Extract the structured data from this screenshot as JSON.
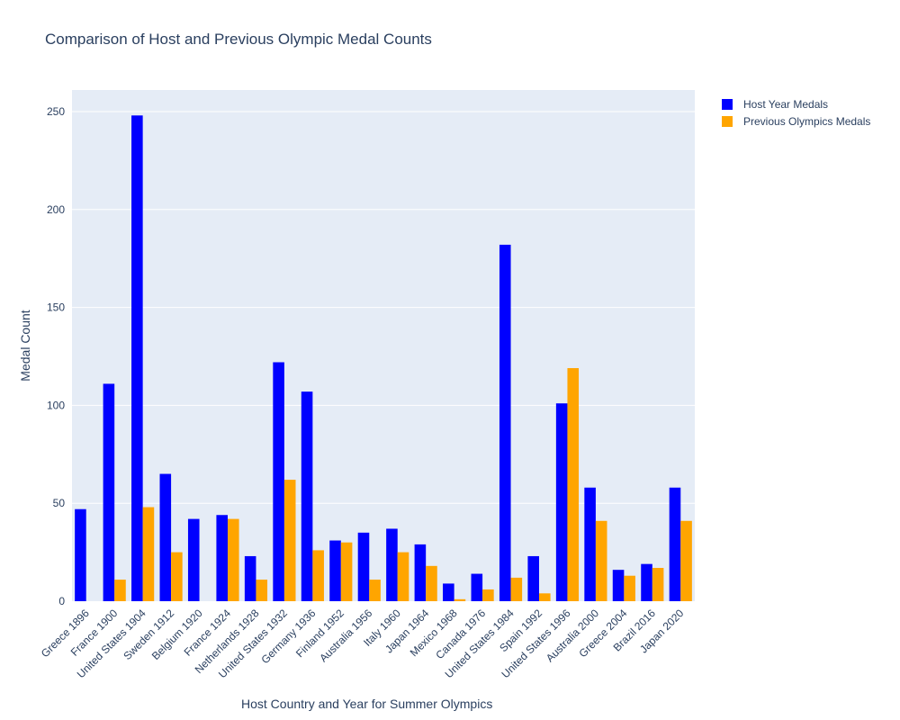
{
  "chart_data": {
    "type": "bar",
    "title": "Comparison of Host and Previous Olympic Medal Counts",
    "xlabel": "Host Country and Year for Summer Olympics",
    "ylabel": "Medal Count",
    "ylim": [
      0,
      261
    ],
    "yticks": [
      0,
      50,
      100,
      150,
      200,
      250
    ],
    "grid": true,
    "legend_position": "top-right",
    "categories": [
      "Greece 1896",
      "France 1900",
      "United States 1904",
      "Sweden 1912",
      "Belgium 1920",
      "France 1924",
      "Netherlands 1928",
      "United States 1932",
      "Germany 1936",
      "Finland 1952",
      "Australia 1956",
      "Italy 1960",
      "Japan 1964",
      "Mexico 1968",
      "Canada 1976",
      "United States 1984",
      "Spain 1992",
      "United States 1996",
      "Australia 2000",
      "Greece 2004",
      "Brazil 2016",
      "Japan 2020"
    ],
    "series": [
      {
        "name": "Host Year Medals",
        "color": "#0000ff",
        "values": [
          47,
          111,
          248,
          65,
          42,
          44,
          23,
          122,
          107,
          31,
          35,
          37,
          29,
          9,
          14,
          182,
          23,
          101,
          58,
          16,
          19,
          58
        ]
      },
      {
        "name": "Previous Olympics Medals",
        "color": "#ffa500",
        "values": [
          0,
          11,
          48,
          25,
          0,
          42,
          11,
          62,
          26,
          30,
          11,
          25,
          18,
          1,
          6,
          12,
          4,
          119,
          41,
          13,
          17,
          41
        ]
      }
    ]
  }
}
